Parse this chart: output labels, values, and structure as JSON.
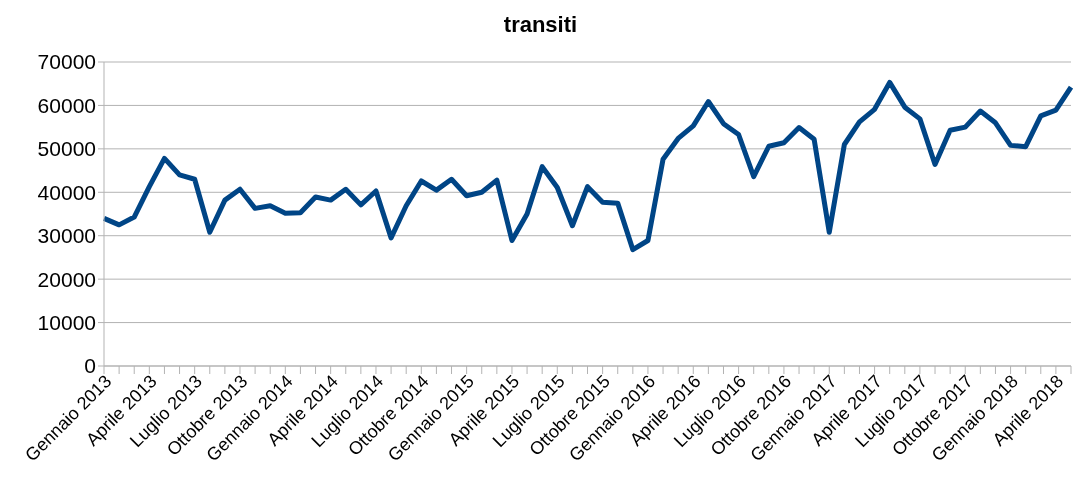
{
  "chart_data": {
    "type": "line",
    "title": "transiti",
    "categories": [
      "Gennaio 2013",
      null,
      null,
      "Aprile 2013",
      null,
      null,
      "Luglio 2013",
      null,
      null,
      "Ottobre 2013",
      null,
      null,
      "Gennaio 2014",
      null,
      null,
      "Aprile 2014",
      null,
      null,
      "Luglio 2014",
      null,
      null,
      "Ottobre 2014",
      null,
      null,
      "Gennaio 2015",
      null,
      null,
      "Aprile 2015",
      null,
      null,
      "Luglio 2015",
      null,
      null,
      "Ottobre 2015",
      null,
      null,
      "Gennaio 2016",
      null,
      null,
      "Aprile 2016",
      null,
      null,
      "Luglio 2016",
      null,
      null,
      "Ottobre 2016",
      null,
      null,
      "Gennaio 2017",
      null,
      null,
      "Aprile 2017",
      null,
      null,
      "Luglio 2017",
      null,
      null,
      "Ottobre 2017",
      null,
      null,
      "Gennaio 2018",
      null,
      null,
      "Aprile 2018",
      null
    ],
    "series": [
      {
        "color": "#004586",
        "values": [
          34000,
          32500,
          34300,
          41300,
          47800,
          44000,
          43000,
          30800,
          38200,
          40700,
          36300,
          36900,
          35200,
          35300,
          38900,
          38200,
          40700,
          37100,
          40300,
          29500,
          36900,
          42600,
          40500,
          43000,
          39200,
          40000,
          42800,
          28900,
          35000,
          45900,
          41100,
          32300,
          41300,
          37700,
          37500,
          26800,
          28900,
          47600,
          52400,
          55300,
          60900,
          55800,
          53300,
          43600,
          50600,
          51400,
          54900,
          52200,
          30800,
          51000,
          56200,
          59100,
          65300,
          59600,
          56900,
          46400,
          54300,
          55000,
          58700,
          56000,
          50800,
          50500,
          57600,
          58900,
          64200
        ]
      }
    ],
    "ylim": [
      0,
      70000
    ],
    "yticks": [
      0,
      10000,
      20000,
      30000,
      40000,
      50000,
      60000,
      70000
    ],
    "grid": "y",
    "legend": false,
    "marker": "none",
    "line_style": "solid"
  }
}
